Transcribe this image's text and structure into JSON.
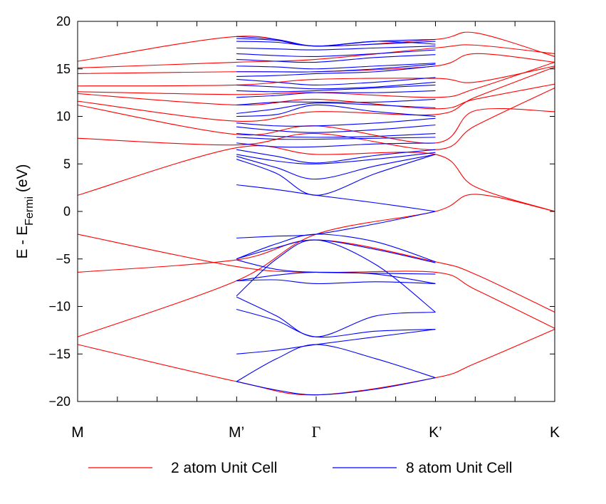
{
  "chart_data": {
    "type": "line",
    "title": "",
    "xlabel": "",
    "ylabel": "E - E",
    "ylabel_subscript": "Fermi",
    "ylabel_unit": " (eV)",
    "ylim": [
      -20,
      20
    ],
    "yticks": [
      "20",
      "15",
      "10",
      "5",
      "0",
      "−5",
      "−10",
      "−15",
      "−20"
    ],
    "ytick_values": [
      20,
      15,
      10,
      5,
      0,
      -5,
      -10,
      -15,
      -20
    ],
    "xlim": [
      0,
      1
    ],
    "kpoints": [
      {
        "label": "M",
        "x": 0.0
      },
      {
        "label": "M’",
        "x": 0.333
      },
      {
        "label": "Γ",
        "x": 0.5
      },
      {
        "label": "K’",
        "x": 0.75
      },
      {
        "label": "K",
        "x": 1.0
      }
    ],
    "grid": false,
    "legend_position": "bottom",
    "colors": {
      "red": "#ff0000",
      "blue": "#0000ff"
    },
    "series": [
      {
        "name": "2 atom Unit Cell",
        "color": "#ff0000",
        "x": [
          0.0,
          0.333,
          0.5,
          0.75,
          0.833,
          1.0
        ],
        "bands": [
          [
            -14.0,
            -17.9,
            -19.3,
            -17.5,
            -16.0,
            -12.4
          ],
          [
            -13.2,
            -7.3,
            -2.4,
            0.0,
            1.8,
            0.0
          ],
          [
            -6.4,
            -5.1,
            -3.0,
            -5.3,
            -6.6,
            -10.6
          ],
          [
            -2.4,
            -5.8,
            -6.4,
            -6.4,
            -8.2,
            -12.3
          ],
          [
            1.7,
            6.7,
            6.0,
            6.0,
            2.6,
            0.0
          ],
          [
            7.7,
            7.0,
            8.2,
            6.5,
            9.0,
            13.0
          ],
          [
            11.2,
            8.1,
            9.0,
            7.2,
            10.6,
            10.5
          ],
          [
            11.6,
            9.5,
            10.5,
            10.2,
            12.0,
            15.2
          ],
          [
            12.4,
            11.2,
            11.8,
            10.8,
            11.8,
            13.4
          ],
          [
            12.6,
            12.3,
            12.5,
            12.0,
            12.9,
            15.7
          ],
          [
            13.2,
            13.3,
            13.9,
            14.0,
            13.6,
            15.3
          ],
          [
            14.5,
            14.7,
            14.7,
            15.3,
            16.6,
            15.7
          ],
          [
            15.1,
            15.7,
            16.0,
            17.2,
            17.5,
            16.6
          ],
          [
            15.8,
            18.4,
            17.4,
            18.1,
            18.8,
            16.3
          ]
        ]
      },
      {
        "name": "8 atom Unit Cell",
        "color": "#0000ff",
        "x": [
          0.333,
          0.417,
          0.5,
          0.625,
          0.75
        ],
        "bands": [
          [
            -17.9,
            -18.8,
            -19.3,
            -18.7,
            -17.5
          ],
          [
            -17.9,
            -15.5,
            -14.0,
            -15.5,
            -17.5
          ],
          [
            -15.0,
            -14.6,
            -14.0,
            -13.2,
            -12.4
          ],
          [
            -10.3,
            -11.5,
            -13.2,
            -12.6,
            -12.4
          ],
          [
            -9.0,
            -11.0,
            -13.2,
            -11.0,
            -10.6
          ],
          [
            -7.3,
            -7.2,
            -7.6,
            -7.4,
            -7.6
          ],
          [
            -7.3,
            -6.7,
            -6.4,
            -6.6,
            -7.6
          ],
          [
            -5.1,
            -6.1,
            -6.4,
            -6.5,
            -6.6
          ],
          [
            -5.0,
            -3.8,
            -3.0,
            -4.0,
            -5.4
          ],
          [
            -5.0,
            -3.4,
            -2.4,
            -3.2,
            -5.3
          ],
          [
            -8.9,
            -5.0,
            -3.0,
            -5.6,
            -10.6
          ],
          [
            -2.8,
            -2.6,
            -2.4,
            -1.3,
            0.0
          ],
          [
            2.8,
            2.3,
            1.7,
            0.9,
            0.0
          ],
          [
            5.5,
            4.0,
            1.7,
            4.0,
            6.0
          ],
          [
            5.8,
            4.6,
            3.4,
            4.8,
            6.0
          ],
          [
            6.0,
            5.3,
            5.0,
            5.5,
            6.2
          ],
          [
            6.5,
            5.8,
            5.1,
            5.9,
            6.5
          ],
          [
            7.2,
            6.8,
            6.8,
            7.1,
            7.2
          ],
          [
            7.8,
            7.6,
            7.6,
            7.7,
            7.8
          ],
          [
            8.2,
            7.9,
            7.8,
            7.9,
            8.2
          ],
          [
            8.9,
            8.5,
            8.3,
            8.6,
            9.1
          ],
          [
            9.3,
            9.0,
            9.0,
            9.3,
            9.8
          ],
          [
            10.0,
            10.2,
            11.2,
            10.5,
            10.0
          ],
          [
            10.3,
            10.8,
            11.4,
            11.2,
            10.9
          ],
          [
            11.2,
            11.5,
            11.5,
            11.5,
            11.8
          ],
          [
            12.0,
            12.2,
            12.5,
            12.5,
            12.7
          ],
          [
            12.7,
            12.6,
            12.7,
            13.0,
            13.3
          ],
          [
            13.3,
            13.1,
            12.9,
            13.1,
            13.6
          ],
          [
            13.9,
            13.6,
            13.3,
            13.6,
            14.1
          ],
          [
            14.2,
            14.3,
            14.5,
            14.7,
            15.3
          ],
          [
            14.7,
            14.7,
            14.7,
            15.0,
            15.5
          ],
          [
            15.3,
            15.2,
            15.0,
            15.3,
            15.6
          ],
          [
            16.0,
            15.8,
            15.7,
            16.2,
            16.5
          ],
          [
            16.6,
            16.4,
            16.3,
            16.6,
            17.0
          ],
          [
            17.2,
            17.1,
            17.0,
            17.2,
            17.4
          ],
          [
            17.9,
            17.8,
            17.4,
            17.6,
            17.9
          ],
          [
            18.2,
            18.0,
            17.4,
            17.9,
            18.1
          ],
          [
            18.4,
            18.1,
            17.4,
            17.9,
            17.6
          ]
        ]
      }
    ]
  }
}
